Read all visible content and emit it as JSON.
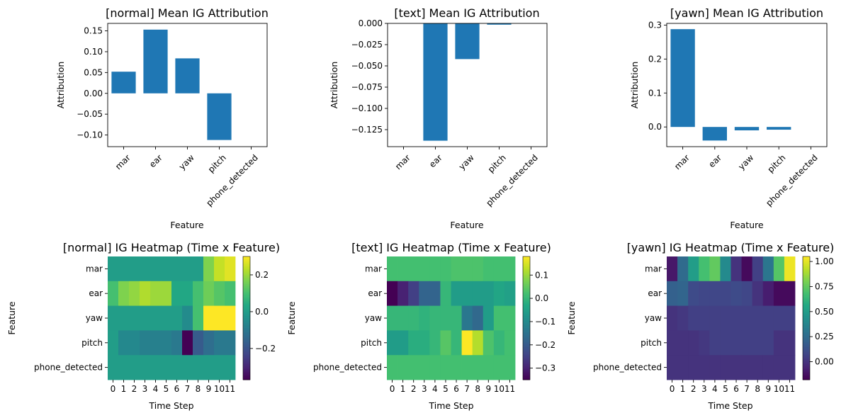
{
  "features": [
    "mar",
    "ear",
    "yaw",
    "pitch",
    "phone_detected"
  ],
  "time_steps": [
    "0",
    "1",
    "2",
    "3",
    "4",
    "5",
    "6",
    "7",
    "8",
    "9",
    "10",
    "11"
  ],
  "colors": {
    "bar": "#1f77b4",
    "colormap": "viridis"
  },
  "chart_data": [
    {
      "type": "bar",
      "title": "[normal] Mean IG Attribution",
      "xlabel": "Feature",
      "ylabel": "Attribution",
      "categories": [
        "mar",
        "ear",
        "yaw",
        "pitch",
        "phone_detected"
      ],
      "values": [
        0.052,
        0.153,
        0.084,
        -0.112,
        0.0
      ],
      "ylim": [
        -0.128,
        0.168
      ],
      "yticks": [
        -0.1,
        -0.05,
        0.0,
        0.05,
        0.1,
        0.15
      ],
      "ytick_labels": [
        "−0.10",
        "−0.05",
        "0.00",
        "0.05",
        "0.10",
        "0.15"
      ]
    },
    {
      "type": "bar",
      "title": "[text] Mean IG Attribution",
      "xlabel": "Feature",
      "ylabel": "Attribution",
      "categories": [
        "mar",
        "ear",
        "yaw",
        "pitch",
        "phone_detected"
      ],
      "values": [
        0.0,
        -0.138,
        -0.042,
        -0.0015,
        0.0
      ],
      "ylim": [
        -0.145,
        0.0
      ],
      "yticks": [
        -0.125,
        -0.1,
        -0.075,
        -0.05,
        -0.025,
        0.0
      ],
      "ytick_labels": [
        "−0.125",
        "−0.100",
        "−0.075",
        "−0.050",
        "−0.025",
        "0.000"
      ]
    },
    {
      "type": "bar",
      "title": "[yawn] Mean IG Attribution",
      "xlabel": "Feature",
      "ylabel": "Attribution",
      "categories": [
        "mar",
        "ear",
        "yaw",
        "pitch",
        "phone_detected"
      ],
      "values": [
        0.288,
        -0.04,
        -0.01,
        -0.008,
        0.0
      ],
      "ylim": [
        -0.058,
        0.305
      ],
      "yticks": [
        0.0,
        0.1,
        0.2,
        0.3
      ],
      "ytick_labels": [
        "0.0",
        "0.1",
        "0.2",
        "0.3"
      ]
    },
    {
      "type": "heatmap",
      "title": "[normal] IG Heatmap (Time x Feature)",
      "xlabel": "Time Step",
      "ylabel": "Feature",
      "vmin": -0.37,
      "vmax": 0.3,
      "cbar_ticks": [
        -0.2,
        0.0,
        0.2
      ],
      "cbar_tick_labels": [
        "−0.2",
        "0.0",
        "0.2"
      ],
      "values": [
        [
          0.0,
          0.0,
          0.0,
          0.0,
          0.0,
          0.0,
          0.0,
          0.0,
          0.0,
          0.17,
          0.24,
          0.27
        ],
        [
          0.1,
          0.17,
          0.19,
          0.22,
          0.2,
          0.2,
          0.03,
          0.03,
          0.1,
          0.15,
          0.12,
          0.1
        ],
        [
          0.0,
          0.0,
          0.0,
          0.0,
          0.0,
          0.0,
          0.0,
          -0.05,
          0.1,
          0.3,
          0.3,
          0.3
        ],
        [
          0.0,
          -0.06,
          -0.06,
          -0.08,
          -0.08,
          -0.08,
          -0.1,
          -0.37,
          -0.18,
          -0.13,
          -0.1,
          -0.1
        ],
        [
          0.0,
          0.0,
          0.0,
          0.0,
          0.0,
          0.0,
          0.0,
          0.0,
          0.0,
          0.0,
          0.0,
          0.0
        ]
      ]
    },
    {
      "type": "heatmap",
      "title": "[text] IG Heatmap (Time x Feature)",
      "xlabel": "Time Step",
      "ylabel": "Feature",
      "vmin": -0.35,
      "vmax": 0.18,
      "cbar_ticks": [
        -0.3,
        -0.2,
        -0.1,
        0.0,
        0.1
      ],
      "cbar_tick_labels": [
        "−0.3",
        "−0.2",
        "−0.1",
        "0.0",
        "0.1"
      ],
      "values": [
        [
          0.02,
          0.02,
          0.02,
          0.02,
          0.02,
          0.02,
          0.03,
          0.03,
          0.03,
          0.02,
          0.02,
          0.02
        ],
        [
          -0.35,
          -0.3,
          -0.25,
          -0.18,
          -0.18,
          0.0,
          -0.06,
          -0.06,
          -0.06,
          -0.06,
          -0.04,
          -0.05
        ],
        [
          0.0,
          0.0,
          0.0,
          -0.01,
          0.0,
          0.0,
          0.0,
          -0.14,
          -0.17,
          -0.06,
          0.02,
          0.02
        ],
        [
          -0.06,
          -0.06,
          -0.02,
          -0.02,
          0.0,
          0.04,
          0.0,
          0.18,
          0.12,
          0.03,
          0.0,
          0.02
        ],
        [
          0.02,
          0.02,
          0.02,
          0.02,
          0.02,
          0.02,
          0.02,
          0.02,
          0.02,
          0.02,
          0.02,
          0.02
        ]
      ]
    },
    {
      "type": "heatmap",
      "title": "[yawn] IG Heatmap (Time x Feature)",
      "xlabel": "Time Step",
      "ylabel": "Feature",
      "vmin": -0.18,
      "vmax": 1.05,
      "cbar_ticks": [
        0.0,
        0.25,
        0.5,
        0.75,
        1.0
      ],
      "cbar_tick_labels": [
        "0.00",
        "0.25",
        "0.50",
        "0.75",
        "1.00"
      ],
      "values": [
        [
          -0.1,
          0.25,
          0.5,
          0.68,
          0.75,
          0.4,
          0.0,
          -0.15,
          0.05,
          0.3,
          0.72,
          1.02
        ],
        [
          0.2,
          0.22,
          0.1,
          0.08,
          0.08,
          0.08,
          0.1,
          0.08,
          0.0,
          -0.08,
          -0.15,
          -0.15
        ],
        [
          0.0,
          0.02,
          0.05,
          0.05,
          0.05,
          0.05,
          0.05,
          0.05,
          0.05,
          0.05,
          0.05,
          0.05
        ],
        [
          0.0,
          0.0,
          0.0,
          0.02,
          0.05,
          0.05,
          0.05,
          0.05,
          0.05,
          0.05,
          0.0,
          0.0
        ],
        [
          0.0,
          0.0,
          0.0,
          0.0,
          0.0,
          0.0,
          0.0,
          0.0,
          0.0,
          0.0,
          0.0,
          0.0
        ]
      ]
    }
  ]
}
